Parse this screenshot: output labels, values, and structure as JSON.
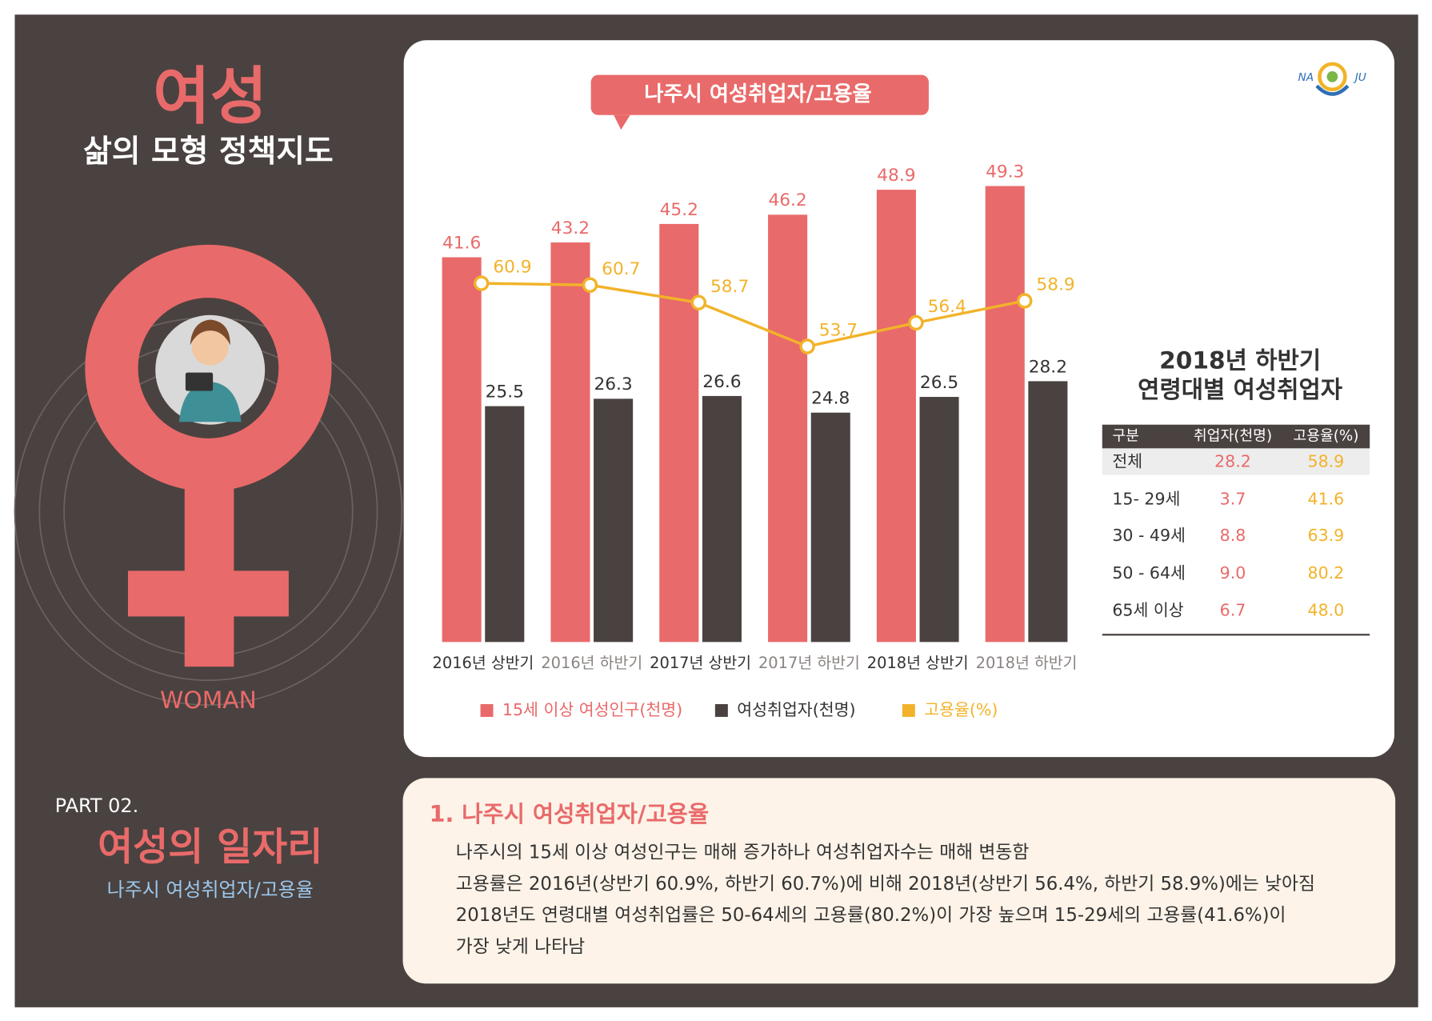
{
  "header": {
    "title": "여성",
    "subtitle": "삶의 모형 정책지도",
    "symbol_label": "WOMAN"
  },
  "part": {
    "label": "PART 02.",
    "title": "여성의 일자리",
    "subtitle": "나주시 여성취업자/고용율"
  },
  "logo": {
    "left": "NA",
    "right": "JU"
  },
  "chart_data": {
    "type": "bar-line",
    "title": "나주시 여성취업자/고용율",
    "categories": [
      "2016년 상반기",
      "2016년 하반기",
      "2017년 상반기",
      "2017년 하반기",
      "2018년 상반기",
      "2018년 하반기"
    ],
    "series": [
      {
        "name": "15세 이상 여성인구(천명)",
        "color": "#e96a6a",
        "values": [
          41.6,
          43.2,
          45.2,
          46.2,
          48.9,
          49.3
        ]
      },
      {
        "name": "여성취업자(천명)",
        "color": "#4a4240",
        "values": [
          25.5,
          26.3,
          26.6,
          24.8,
          26.5,
          28.2
        ]
      },
      {
        "name": "고용율(%)",
        "color": "#f2b32a",
        "type": "line",
        "axis": "y2",
        "values": [
          60.9,
          60.7,
          58.7,
          53.7,
          56.4,
          58.9
        ]
      }
    ],
    "ylim": [
      0,
      55
    ],
    "y2lim": [
      20,
      78
    ]
  },
  "table": {
    "title": [
      "2018년 하반기",
      "연령대별 여성취업자"
    ],
    "header": [
      "구분",
      "취업자(천명)",
      "고용율(%)"
    ],
    "rows": [
      [
        "전체",
        "28.2",
        "58.9"
      ],
      [
        "15- 29세",
        "3.7",
        "41.6"
      ],
      [
        "30 - 49세",
        "8.8",
        "63.9"
      ],
      [
        "50 - 64세",
        "9.0",
        "80.2"
      ],
      [
        "65세 이상",
        "6.7",
        "48.0"
      ]
    ]
  },
  "description": {
    "heading": "1. 나주시 여성취업자/고용율",
    "lines": [
      "나주시의 15세 이상 여성인구는 매해 증가하나 여성취업자수는 매해 변동함",
      "고용률은 2016년(상반기 60.9%, 하반기 60.7%)에 비해 2018년(상반기 56.4%, 하반기 58.9%)에는 낮아짐",
      "2018년도 연령대별 여성취업률은 50-64세의 고용률(80.2%)이 가장 높으며 15-29세의 고용률(41.6%)이",
      "가장 낮게 나타남"
    ]
  }
}
